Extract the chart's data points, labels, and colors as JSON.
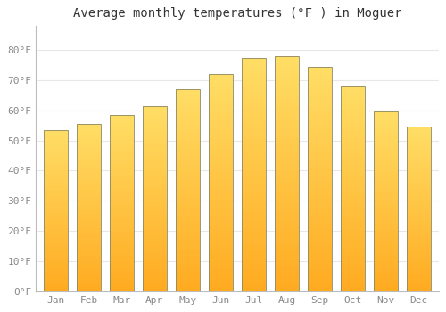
{
  "title": "Average monthly temperatures (°F ) in Moguer",
  "months": [
    "Jan",
    "Feb",
    "Mar",
    "Apr",
    "May",
    "Jun",
    "Jul",
    "Aug",
    "Sep",
    "Oct",
    "Nov",
    "Dec"
  ],
  "values": [
    53.5,
    55.5,
    58.5,
    61.5,
    67.0,
    72.0,
    77.5,
    78.0,
    74.5,
    68.0,
    59.5,
    54.5
  ],
  "bar_color_top": "#FFD966",
  "bar_color_bottom": "#FFA820",
  "bar_edge_color": "#888866",
  "background_color": "#ffffff",
  "plot_bg_color": "#ffffff",
  "grid_color": "#e8e8e8",
  "tick_label_color": "#888888",
  "title_color": "#333333",
  "ylim": [
    0,
    88
  ],
  "yticks": [
    0,
    10,
    20,
    30,
    40,
    50,
    60,
    70,
    80
  ],
  "ytick_labels": [
    "0°F",
    "10°F",
    "20°F",
    "30°F",
    "40°F",
    "50°F",
    "60°F",
    "70°F",
    "80°F"
  ],
  "title_fontsize": 10,
  "tick_fontsize": 8,
  "bar_width": 0.72
}
